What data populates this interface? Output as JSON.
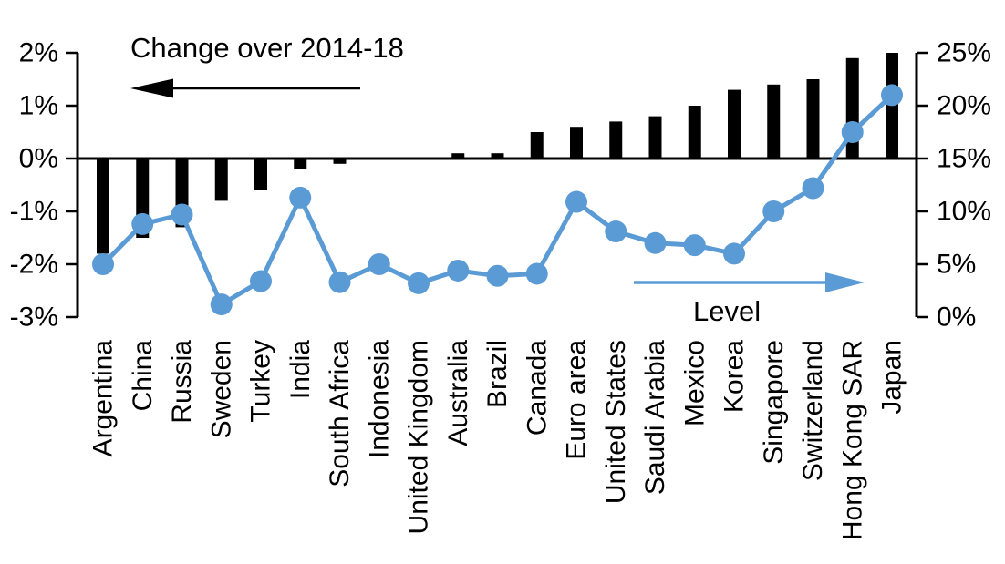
{
  "chart_data": {
    "type": "bar+line-dual-axis",
    "categories": [
      "Argentina",
      "China",
      "Russia",
      "Sweden",
      "Turkey",
      "India",
      "South Africa",
      "Indonesia",
      "United Kingdom",
      "Australia",
      "Brazil",
      "Canada",
      "Euro area",
      "United States",
      "Saudi Arabia",
      "Mexico",
      "Korea",
      "Singapore",
      "Switzerland",
      "Hong Kong SAR",
      "Japan"
    ],
    "series": [
      {
        "name": "Change over 2014-18",
        "type": "bar",
        "axis": "left",
        "color": "#000000",
        "values": [
          -1.8,
          -1.5,
          -1.3,
          -0.8,
          -0.6,
          -0.2,
          -0.1,
          0.0,
          0.0,
          0.1,
          0.1,
          0.5,
          0.6,
          0.7,
          0.8,
          1.0,
          1.3,
          1.4,
          1.5,
          1.9,
          2.0
        ]
      },
      {
        "name": "Level",
        "type": "line",
        "axis": "right",
        "color": "#5b9bd5",
        "values": [
          5.0,
          8.8,
          9.7,
          1.2,
          3.4,
          11.3,
          3.3,
          5.0,
          3.2,
          4.4,
          3.9,
          4.1,
          10.9,
          8.1,
          7.0,
          6.8,
          6.0,
          10.0,
          12.2,
          17.5,
          21.0
        ]
      }
    ],
    "left_axis": {
      "tick_labels": [
        "2%",
        "1%",
        "0%",
        "-1%",
        "-2%",
        "-3%"
      ],
      "tick_values": [
        2,
        1,
        0,
        -1,
        -2,
        -3
      ],
      "min": -3,
      "max": 2
    },
    "right_axis": {
      "tick_labels": [
        "25%",
        "20%",
        "15%",
        "10%",
        "5%",
        "0%"
      ],
      "tick_values": [
        25,
        20,
        15,
        10,
        5,
        0
      ],
      "min": 0,
      "max": 25
    },
    "annotations": {
      "change": {
        "text": "Change over 2014-18",
        "arrow_direction": "left",
        "color": "#000000"
      },
      "level": {
        "text": "Level",
        "arrow_direction": "right",
        "color": "#5b9bd5"
      }
    },
    "grid": false,
    "background": "#ffffff"
  }
}
